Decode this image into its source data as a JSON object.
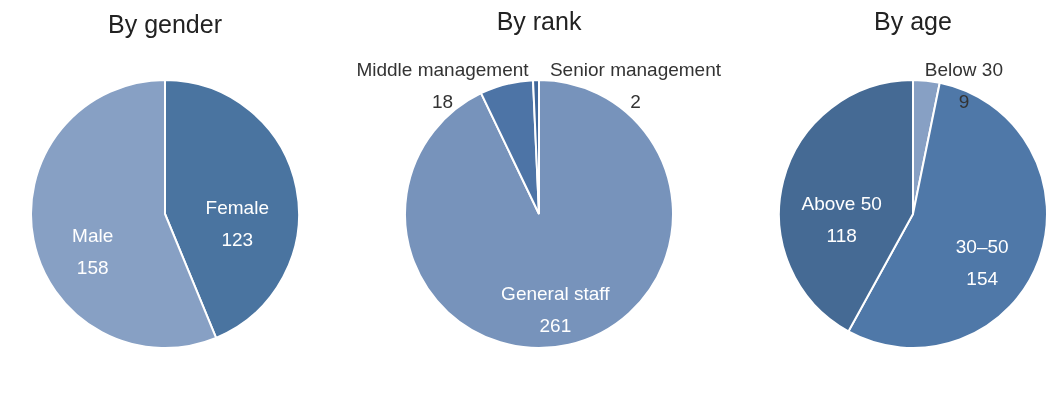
{
  "chart_data": [
    {
      "type": "pie",
      "title": "By gender",
      "categories": [
        "Female",
        "Male"
      ],
      "values": [
        123,
        158
      ],
      "colors": [
        "#4a74a0",
        "#87a0c4"
      ],
      "data_labels": true
    },
    {
      "type": "pie",
      "title": "By rank",
      "categories": [
        "General staff",
        "Middle management",
        "Senior management"
      ],
      "values": [
        261,
        18,
        2
      ],
      "colors": [
        "#7793bb",
        "#4d74a6",
        "#3f679a"
      ],
      "data_labels": true
    },
    {
      "type": "pie",
      "title": "By age",
      "categories": [
        "Below 30",
        "30–50",
        "Above 50"
      ],
      "values": [
        9,
        154,
        118
      ],
      "colors": [
        "#87a0c4",
        "#4f78a8",
        "#456a94"
      ],
      "data_labels": true
    }
  ]
}
